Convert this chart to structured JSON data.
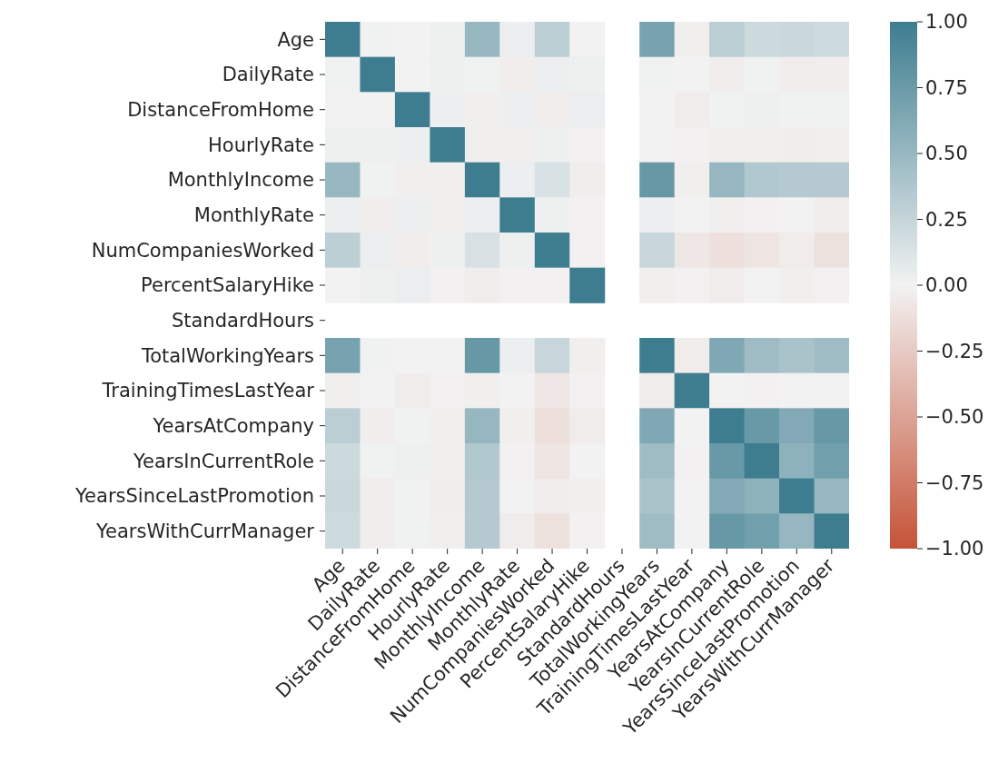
{
  "chart_data": {
    "type": "heatmap",
    "categories": [
      "Age",
      "DailyRate",
      "DistanceFromHome",
      "HourlyRate",
      "MonthlyIncome",
      "MonthlyRate",
      "NumCompaniesWorked",
      "PercentSalaryHike",
      "StandardHours",
      "TotalWorkingYears",
      "TrainingTimesLastYear",
      "YearsAtCompany",
      "YearsInCurrentRole",
      "YearsSinceLastPromotion",
      "YearsWithCurrManager"
    ],
    "y_categories": [
      "Age",
      "DailyRate",
      "DistanceFromHome",
      "HourlyRate",
      "MonthlyIncome",
      "MonthlyRate",
      "NumCompaniesWorked",
      "PercentSalaryHike",
      "StandardHours",
      "TotalWorkingYears",
      "TrainingTimesLastYear",
      "YearsAtCompany",
      "YearsInCurrentRole",
      "YearsSinceLastPromotion",
      "YearsWithCurrManager"
    ],
    "cells": [
      [
        1.0,
        0.01,
        0.0,
        0.02,
        0.5,
        0.03,
        0.3,
        0.0,
        null,
        0.68,
        -0.02,
        0.31,
        0.21,
        0.22,
        0.2
      ],
      [
        0.01,
        1.0,
        0.0,
        0.02,
        0.01,
        -0.03,
        0.04,
        0.02,
        null,
        0.01,
        0.0,
        -0.03,
        0.01,
        -0.03,
        -0.03
      ],
      [
        0.0,
        0.0,
        1.0,
        0.03,
        -0.02,
        0.03,
        -0.03,
        0.04,
        null,
        0.0,
        -0.04,
        0.01,
        0.02,
        0.01,
        0.01
      ],
      [
        0.02,
        0.02,
        0.03,
        1.0,
        -0.02,
        -0.02,
        0.02,
        -0.01,
        null,
        0.0,
        -0.01,
        -0.02,
        -0.02,
        -0.03,
        -0.02
      ],
      [
        0.5,
        0.01,
        -0.02,
        -0.02,
        1.0,
        0.03,
        0.15,
        -0.03,
        null,
        0.77,
        -0.02,
        0.51,
        0.36,
        0.34,
        0.34
      ],
      [
        0.03,
        -0.03,
        0.03,
        -0.02,
        0.03,
        1.0,
        0.02,
        -0.01,
        null,
        0.03,
        0.0,
        -0.02,
        -0.01,
        0.0,
        -0.04
      ],
      [
        0.3,
        0.04,
        -0.03,
        0.02,
        0.15,
        0.02,
        1.0,
        -0.01,
        null,
        0.24,
        -0.07,
        -0.12,
        -0.09,
        -0.04,
        -0.11
      ],
      [
        0.0,
        0.02,
        0.04,
        -0.01,
        -0.03,
        -0.01,
        -0.01,
        1.0,
        null,
        -0.02,
        -0.01,
        -0.04,
        0.0,
        -0.02,
        -0.01
      ],
      [
        null,
        null,
        null,
        null,
        null,
        null,
        null,
        null,
        null,
        null,
        null,
        null,
        null,
        null,
        null
      ],
      [
        0.68,
        0.01,
        0.0,
        0.0,
        0.77,
        0.03,
        0.24,
        -0.02,
        null,
        1.0,
        -0.04,
        0.63,
        0.46,
        0.4,
        0.46
      ],
      [
        -0.02,
        0.0,
        -0.04,
        -0.01,
        -0.02,
        0.0,
        -0.07,
        -0.01,
        null,
        -0.04,
        1.0,
        0.0,
        -0.01,
        0.0,
        0.0
      ],
      [
        0.31,
        -0.03,
        0.01,
        -0.02,
        0.51,
        -0.02,
        -0.12,
        -0.04,
        null,
        0.63,
        0.0,
        1.0,
        0.76,
        0.62,
        0.77
      ],
      [
        0.21,
        0.01,
        0.02,
        -0.02,
        0.36,
        -0.01,
        -0.09,
        0.0,
        null,
        0.46,
        -0.01,
        0.76,
        1.0,
        0.55,
        0.71
      ],
      [
        0.22,
        -0.03,
        0.01,
        -0.03,
        0.34,
        0.0,
        -0.04,
        -0.02,
        null,
        0.4,
        0.0,
        0.62,
        0.55,
        1.0,
        0.51
      ],
      [
        0.2,
        -0.03,
        0.01,
        -0.02,
        0.34,
        -0.04,
        -0.11,
        -0.01,
        null,
        0.46,
        0.0,
        0.77,
        0.71,
        0.51,
        1.0
      ]
    ],
    "clim": [
      -1,
      1
    ],
    "cticks": [
      {
        "value": 1,
        "label": "1.00"
      },
      {
        "value": 0.75,
        "label": "0.75"
      },
      {
        "value": 0.5,
        "label": "0.50"
      },
      {
        "value": 0.25,
        "label": "0.25"
      },
      {
        "value": 0,
        "label": "0.00"
      },
      {
        "value": -0.25,
        "label": "−0.25"
      },
      {
        "value": -0.5,
        "label": "−0.50"
      },
      {
        "value": -0.75,
        "label": "−0.75"
      },
      {
        "value": -1,
        "label": "−1.00"
      }
    ]
  }
}
